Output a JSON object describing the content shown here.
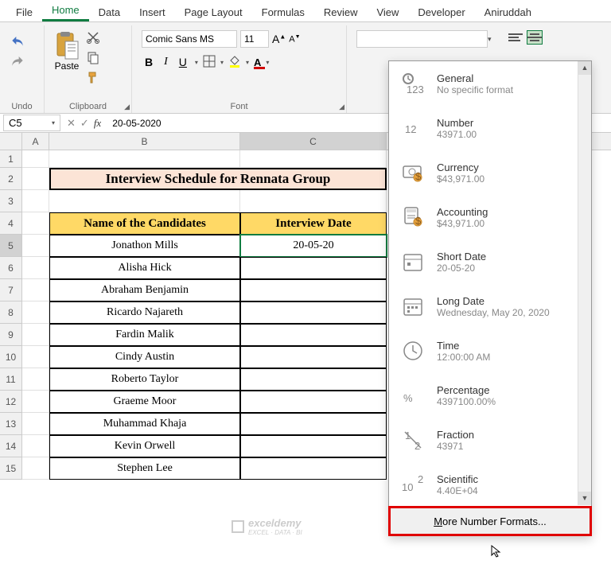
{
  "tabs": [
    "File",
    "Home",
    "Data",
    "Insert",
    "Page Layout",
    "Formulas",
    "Review",
    "View",
    "Developer",
    "Aniruddah"
  ],
  "active_tab": 1,
  "ribbon": {
    "undo_group": "Undo",
    "clipboard_group": "Clipboard",
    "paste_label": "Paste",
    "font_group": "Font",
    "font_name": "Comic Sans MS",
    "font_size": "11",
    "num_format_value": ""
  },
  "cell_ref": "C5",
  "formula_value": "20-05-2020",
  "columns": [
    "A",
    "B",
    "C"
  ],
  "title_text": "Interview Schedule for Rennata Group",
  "header_b": "Name of the Candidates",
  "header_c": "Interview Date",
  "active_c_value": "20-05-20",
  "candidates": [
    "Jonathon Mills",
    "Alisha Hick",
    "Abraham Benjamin",
    "Ricardo Najareth",
    "Fardin Malik",
    "Cindy Austin",
    "Roberto Taylor",
    "Graeme Moor",
    "Muhammad Khaja",
    "Kevin Orwell",
    "Stephen Lee"
  ],
  "num_formats": [
    {
      "title": "General",
      "sub": "No specific format",
      "icon": "general"
    },
    {
      "title": "Number",
      "sub": "43971.00",
      "icon": "number"
    },
    {
      "title": "Currency",
      "sub": "$43,971.00",
      "icon": "currency"
    },
    {
      "title": "Accounting",
      "sub": "$43,971.00",
      "icon": "accounting"
    },
    {
      "title": "Short Date",
      "sub": "20-05-20",
      "icon": "shortdate"
    },
    {
      "title": "Long Date",
      "sub": "Wednesday, May 20, 2020",
      "icon": "longdate"
    },
    {
      "title": "Time",
      "sub": "12:00:00 AM",
      "icon": "time"
    },
    {
      "title": "Percentage",
      "sub": "4397100.00%",
      "icon": "percent"
    },
    {
      "title": "Fraction",
      "sub": "43971",
      "icon": "fraction"
    },
    {
      "title": "Scientific",
      "sub": "4.40E+04",
      "icon": "scientific"
    }
  ],
  "more_formats": "More Number Formats...",
  "colors": {
    "accent": "#107c41",
    "title_bg": "#fce4d6",
    "header_bg": "#ffd966",
    "highlight_red": "#e00000",
    "font_color_bar": "#d00000",
    "fill_color_bar": "#ffff00"
  },
  "watermark": {
    "main": "exceldemy",
    "sub": "EXCEL · DATA · BI"
  }
}
